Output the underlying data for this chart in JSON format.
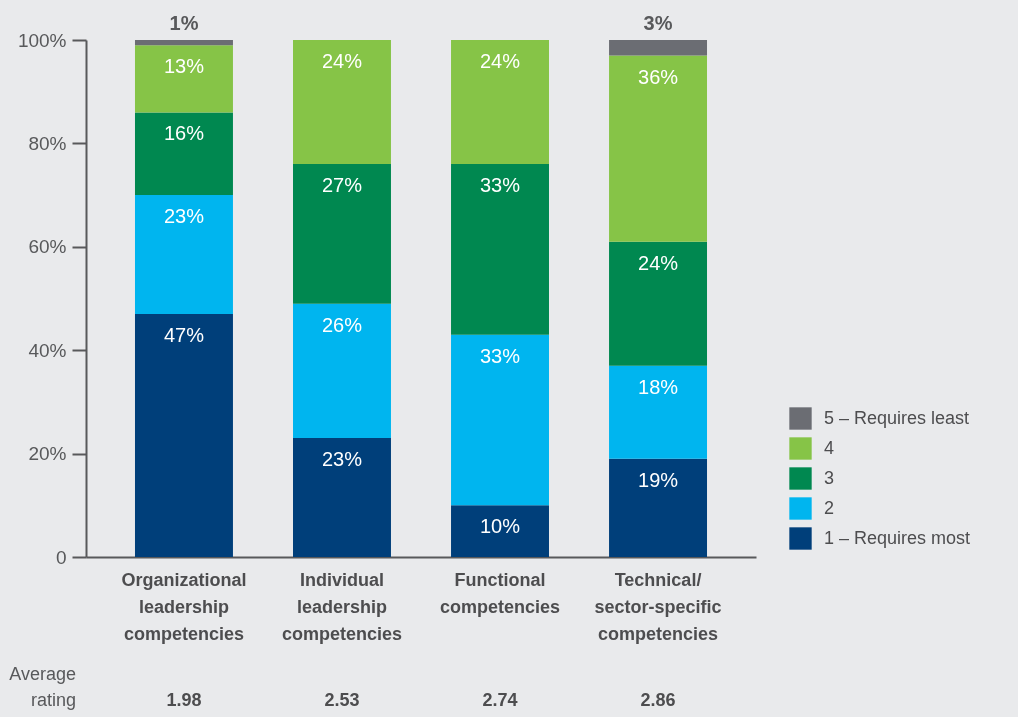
{
  "chart_data": {
    "type": "bar",
    "stacked": true,
    "categories": [
      "Organizational leadership competencies",
      "Individual leadership competencies",
      "Functional competencies",
      "Technical/sector-specific competencies"
    ],
    "series": [
      {
        "name": "1 – Requires most",
        "color": "#003f7a",
        "values": [
          47,
          23,
          10,
          19
        ],
        "value_labels": [
          "47%",
          "23%",
          "10%",
          "19%"
        ]
      },
      {
        "name": "2",
        "color": "#00b5ef",
        "values": [
          23,
          26,
          33,
          18
        ],
        "value_labels": [
          "23%",
          "26%",
          "33%",
          "18%"
        ]
      },
      {
        "name": "3",
        "color": "#008850",
        "values": [
          16,
          27,
          33,
          24
        ],
        "value_labels": [
          "16%",
          "27%",
          "33%",
          "24%"
        ]
      },
      {
        "name": "4",
        "color": "#86c447",
        "values": [
          13,
          24,
          24,
          36
        ],
        "value_labels": [
          "13%",
          "24%",
          "24%",
          "36%"
        ]
      },
      {
        "name": "5 – Requires least",
        "color": "#6b6d73",
        "values": [
          1,
          0,
          0,
          3
        ],
        "value_labels": [
          "1%",
          null,
          null,
          "3%"
        ]
      }
    ],
    "ylim": [
      0,
      100
    ],
    "yticks": [
      0,
      {
        "value": 20,
        "label": "20%"
      },
      {
        "value": 40,
        "label": "40%"
      },
      {
        "value": 60,
        "label": "60%"
      },
      {
        "value": 80,
        "label": "80%"
      },
      {
        "value": 100,
        "label": "100%"
      }
    ],
    "grid": false,
    "legend": "bottom right",
    "annotations": [
      "Average rating",
      "1.98",
      "2.53",
      "2.74",
      "2.86"
    ]
  }
}
